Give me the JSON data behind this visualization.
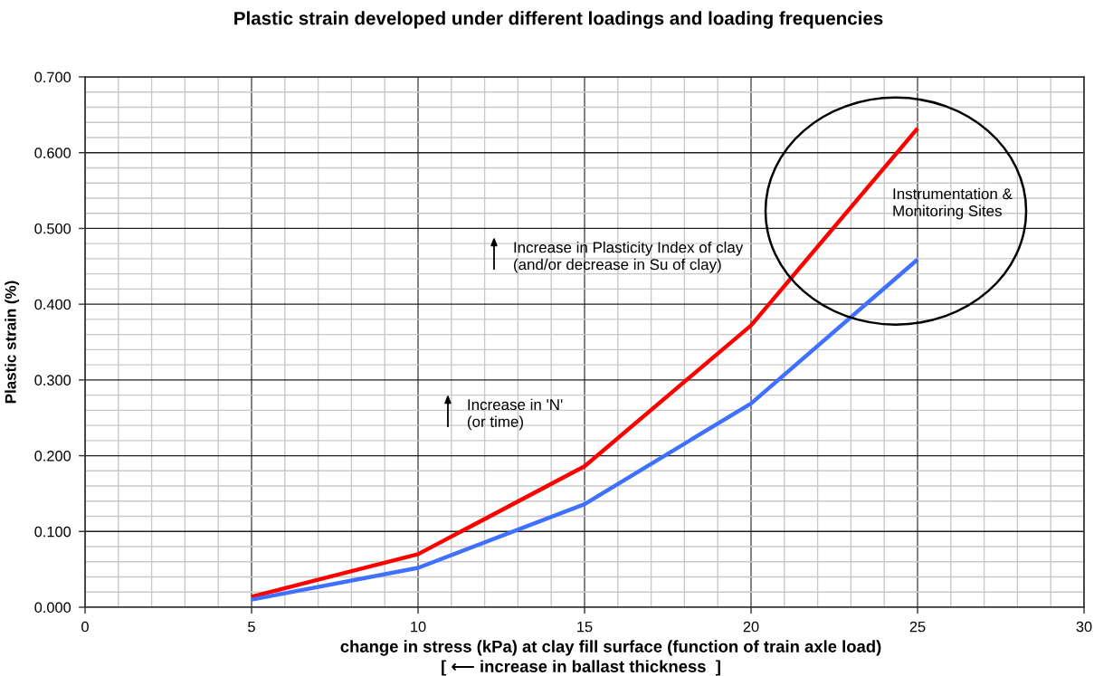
{
  "chart_data": {
    "type": "line",
    "title": "Plastic strain developed under different loadings and loading frequencies",
    "xlabel": "change in stress (kPa) at clay fill surface (function of train axle load)",
    "ylabel": "Plastic strain (%)",
    "x": [
      5,
      10,
      15,
      20,
      25
    ],
    "series": [
      {
        "color": "#ff0000",
        "values": [
          0.014,
          0.07,
          0.186,
          0.372,
          0.632
        ]
      },
      {
        "color": "#4070ff",
        "values": [
          0.01,
          0.052,
          0.136,
          0.269,
          0.459
        ]
      }
    ],
    "xlim": [
      0,
      30
    ],
    "ylim": [
      0,
      0.7
    ],
    "xticks": [
      0,
      5,
      10,
      15,
      20,
      25,
      30
    ],
    "yticks": [
      {
        "value": 0,
        "label": "0.000"
      },
      {
        "value": 0.1,
        "label": "0.100"
      },
      {
        "value": 0.2,
        "label": "0.200"
      },
      {
        "value": 0.3,
        "label": "0.300"
      },
      {
        "value": 0.4,
        "label": "0.400"
      },
      {
        "value": 0.5,
        "label": "0.500"
      },
      {
        "value": 0.6,
        "label": "0.600"
      },
      {
        "value": 0.7,
        "label": "0.700"
      }
    ],
    "grid": true,
    "annotations": [
      "Increase in Plasticity Index of clay\n(and/or decrease in Su of clay)",
      "Increase in 'N'\n(or time)",
      "Instrumentation &\nMonitoring Sites",
      "[ ⟵ increase in ballast thickness  ]"
    ]
  }
}
